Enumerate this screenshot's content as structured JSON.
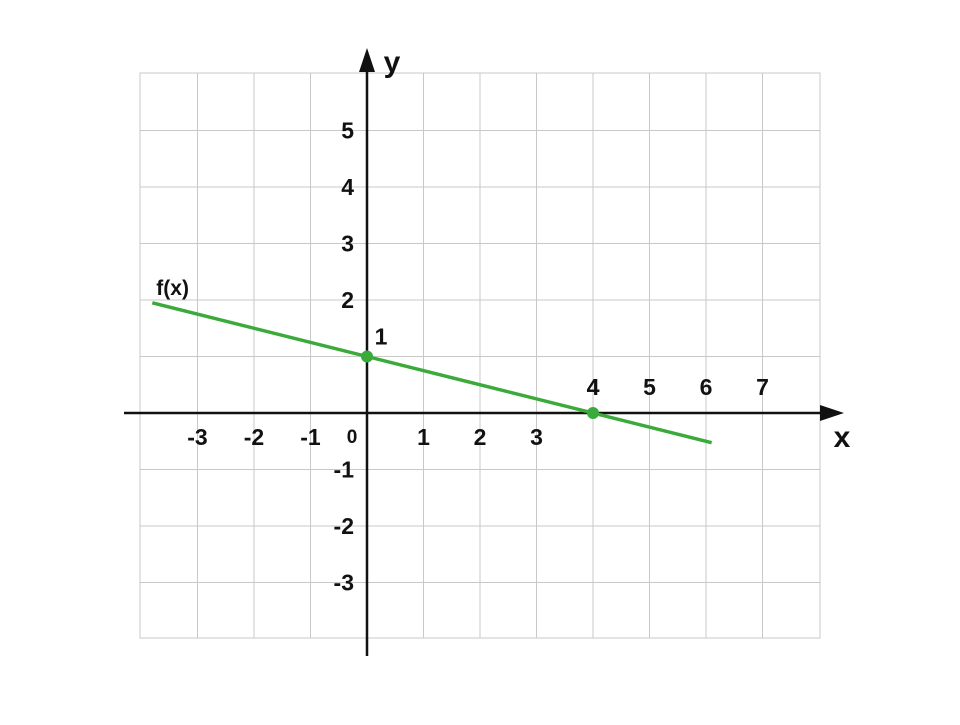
{
  "chart_data": {
    "type": "line",
    "xlabel": "x",
    "ylabel": "y",
    "xlim": [
      -4,
      8
    ],
    "ylim": [
      -4,
      6
    ],
    "grid": true,
    "x_ticks": [
      -3,
      -2,
      -1,
      1,
      2,
      3,
      4,
      5,
      6,
      7
    ],
    "y_ticks": [
      5,
      4,
      3,
      2,
      -1,
      -2,
      -3
    ],
    "origin_label": "0",
    "series": [
      {
        "name": "f(x)",
        "color": "#3aaa3a",
        "x": [
          -3.8,
          6.1
        ],
        "y": [
          1.95,
          -0.525
        ]
      }
    ],
    "highlighted_points": [
      {
        "x": 0,
        "y": 1,
        "label": "1"
      },
      {
        "x": 4,
        "y": 0,
        "label": "4"
      }
    ]
  }
}
